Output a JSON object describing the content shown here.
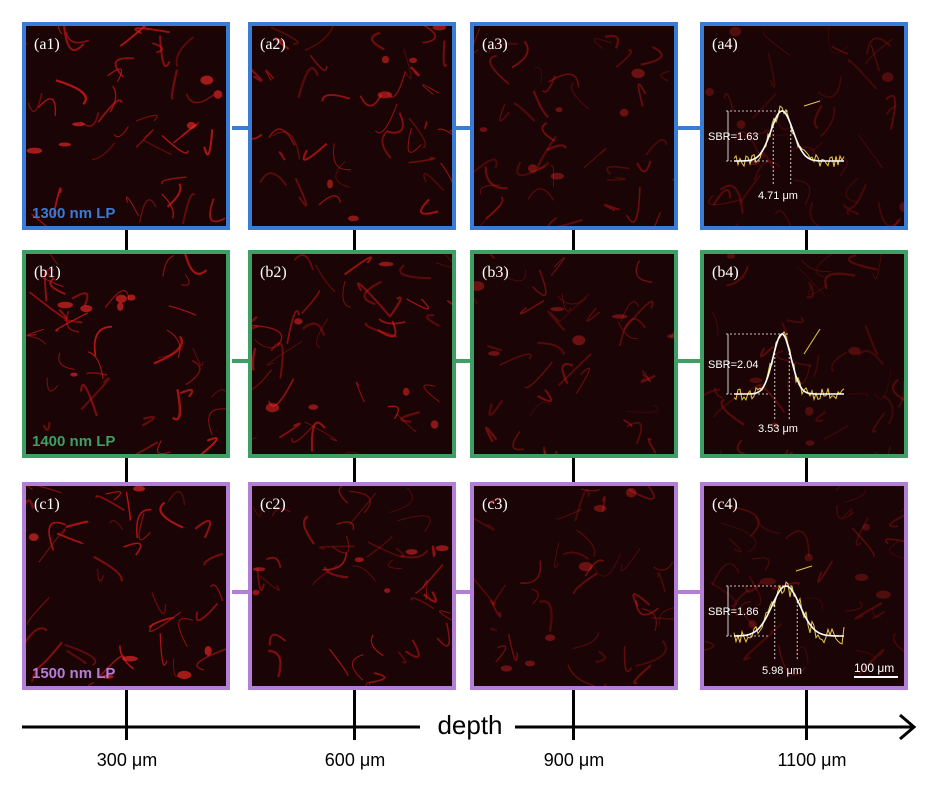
{
  "rows": [
    {
      "id": "a",
      "filter_label": "1300 nm LP",
      "color": "#3a7bd5"
    },
    {
      "id": "b",
      "filter_label": "1400 nm LP",
      "color": "#3f9e63"
    },
    {
      "id": "c",
      "filter_label": "1500 nm LP",
      "color": "#b37fd6"
    }
  ],
  "panels": {
    "a1": "(a1)",
    "a2": "(a2)",
    "a3": "(a3)",
    "a4": "(a4)",
    "b1": "(b1)",
    "b2": "(b2)",
    "b3": "(b3)",
    "b4": "(b4)",
    "c1": "(c1)",
    "c2": "(c2)",
    "c3": "(c3)",
    "c4": "(c4)"
  },
  "profiles": {
    "a4": {
      "sbr": "SBR=1.63",
      "fwhm": "4.71 μm"
    },
    "b4": {
      "sbr": "SBR=2.04",
      "fwhm": "3.53 μm"
    },
    "c4": {
      "sbr": "SBR=1.86",
      "fwhm": "5.98 μm"
    }
  },
  "scale_bar": "100 μm",
  "axis": {
    "label": "depth",
    "ticks": [
      "300 μm",
      "600 μm",
      "900 μm",
      "1100 μm"
    ]
  },
  "colors": {
    "background": "#ffffff",
    "vessel": "#e02020",
    "tissue": "#1a0405",
    "profile_raw": "#e8c84a",
    "profile_fit": "#ffffff"
  }
}
